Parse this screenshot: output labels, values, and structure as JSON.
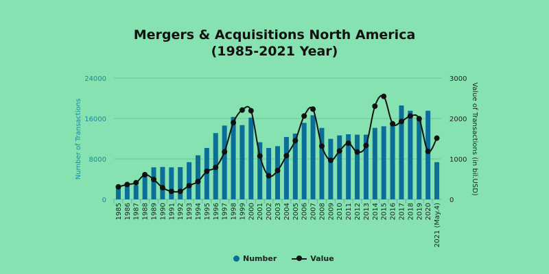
{
  "chart_data": {
    "type": "bar+line",
    "title": "Mergers & Acquisitions North America",
    "subtitle": "(1985-2021 Year)",
    "categories": [
      "1985",
      "1986",
      "1987",
      "1988",
      "1989",
      "1990",
      "1991",
      "1992",
      "1993",
      "1994",
      "1995",
      "1996",
      "1997",
      "1998",
      "1999",
      "2000",
      "2001",
      "2002",
      "2003",
      "2004",
      "2005",
      "2006",
      "2007",
      "2008",
      "2009",
      "2010",
      "2011",
      "2012",
      "2013",
      "2014",
      "2015",
      "2016",
      "2017",
      "2018",
      "2019",
      "2020",
      "2021 (May.4)"
    ],
    "series": [
      {
        "name": "Number",
        "type": "bar",
        "axis": "left",
        "color": "#0a6e99",
        "values": [
          2600,
          2700,
          2800,
          4650,
          6330,
          6400,
          6330,
          6370,
          7360,
          8720,
          10170,
          13110,
          14600,
          16310,
          14690,
          16180,
          11300,
          10170,
          10530,
          12340,
          13020,
          15140,
          16640,
          14140,
          11970,
          12650,
          12880,
          12800,
          12800,
          14140,
          14460,
          14690,
          18580,
          17530,
          16000,
          17530,
          7360
        ]
      },
      {
        "name": "Value",
        "type": "line",
        "axis": "right",
        "color": "#111111",
        "values": [
          310,
          367,
          412,
          610,
          491,
          288,
          198,
          198,
          339,
          441,
          695,
          791,
          1175,
          1898,
          2209,
          2192,
          1073,
          582,
          712,
          1079,
          1452,
          2062,
          2232,
          1316,
          966,
          1198,
          1390,
          1170,
          1333,
          2305,
          2548,
          1870,
          1927,
          2062,
          1995,
          1186,
          1514
        ]
      }
    ],
    "ylabel": "Number of Transactions",
    "y2label": "Value of Transactions (in bil.USD)",
    "ylim": [
      0,
      24000
    ],
    "y2lim": [
      0,
      3000
    ],
    "yticks": [
      "0",
      "8000",
      "16000",
      "24000"
    ],
    "y2ticks": [
      "0",
      "1000",
      "2000",
      "3000"
    ],
    "grid": true,
    "legend": "bottom-center"
  }
}
